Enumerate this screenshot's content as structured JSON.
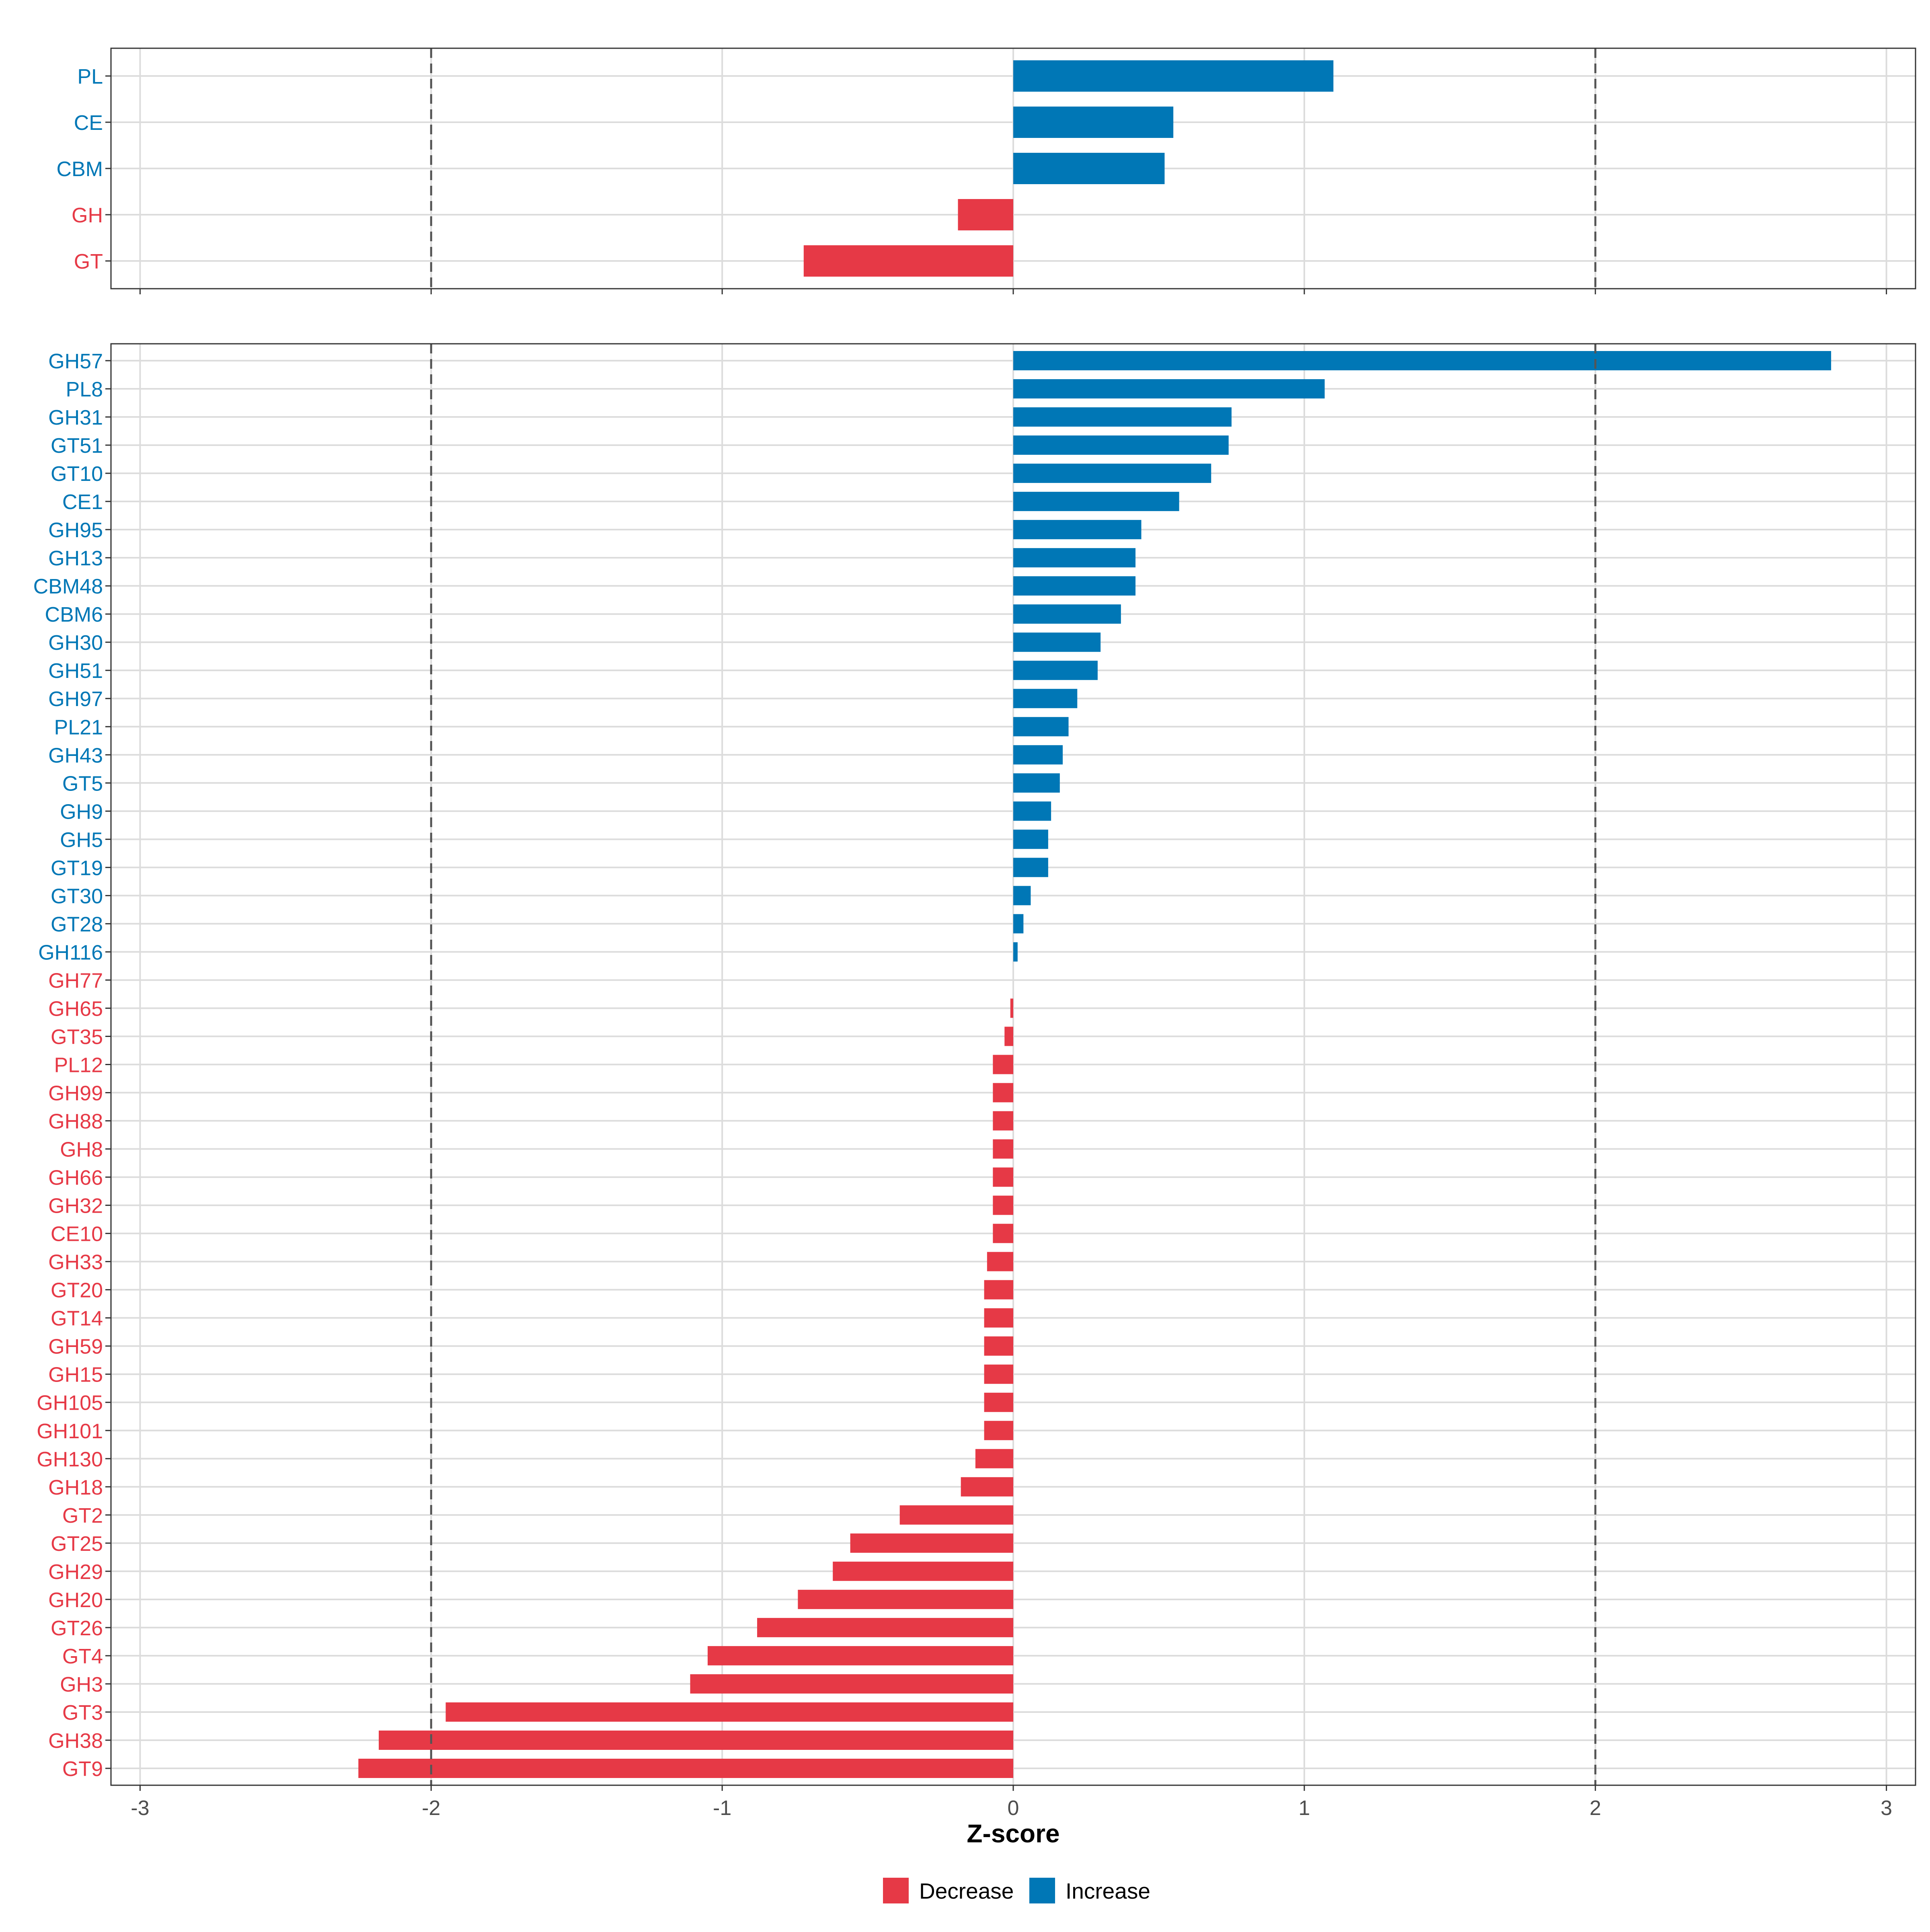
{
  "chart_data": {
    "type": "bar",
    "orientation": "horizontal",
    "xlabel": "Z-score",
    "xlim": [
      -3.1,
      3.1
    ],
    "xticks": [
      -3,
      -2,
      -1,
      0,
      1,
      2,
      3
    ],
    "reference_lines": [
      -2,
      2
    ],
    "grid": true,
    "colors": {
      "Decrease": "#e63946",
      "Increase": "#0077b6"
    },
    "legend": {
      "position": "bottom",
      "entries": [
        {
          "label": "Decrease",
          "color": "#e63946"
        },
        {
          "label": "Increase",
          "color": "#0077b6"
        }
      ]
    },
    "panels": [
      {
        "name": "class",
        "categories": [
          "PL",
          "CE",
          "CBM",
          "GH",
          "GT"
        ],
        "values": [
          1.1,
          0.55,
          0.52,
          -0.19,
          -0.72
        ],
        "groups": [
          "Increase",
          "Increase",
          "Increase",
          "Decrease",
          "Decrease"
        ]
      },
      {
        "name": "family",
        "categories": [
          "GH57",
          "PL8",
          "GH31",
          "GT51",
          "GT10",
          "CE1",
          "GH95",
          "GH13",
          "CBM48",
          "CBM6",
          "GH30",
          "GH51",
          "GH97",
          "PL21",
          "GH43",
          "GT5",
          "GH9",
          "GH5",
          "GT19",
          "GT30",
          "GT28",
          "GH116",
          "GH77",
          "GH65",
          "GT35",
          "PL12",
          "GH99",
          "GH88",
          "GH8",
          "GH66",
          "GH32",
          "CE10",
          "GH33",
          "GT20",
          "GT14",
          "GH59",
          "GH15",
          "GH105",
          "GH101",
          "GH130",
          "GH18",
          "GT2",
          "GT25",
          "GH29",
          "GH20",
          "GT26",
          "GT4",
          "GH3",
          "GT3",
          "GH38",
          "GT9"
        ],
        "values": [
          2.81,
          1.07,
          0.75,
          0.74,
          0.68,
          0.57,
          0.44,
          0.42,
          0.42,
          0.37,
          0.3,
          0.29,
          0.22,
          0.19,
          0.17,
          0.16,
          0.13,
          0.12,
          0.12,
          0.06,
          0.035,
          0.015,
          0.0,
          -0.01,
          -0.03,
          -0.07,
          -0.07,
          -0.07,
          -0.07,
          -0.07,
          -0.07,
          -0.07,
          -0.09,
          -0.1,
          -0.1,
          -0.1,
          -0.1,
          -0.1,
          -0.1,
          -0.13,
          -0.18,
          -0.39,
          -0.56,
          -0.62,
          -0.74,
          -0.88,
          -1.05,
          -1.11,
          -1.95,
          -2.18,
          -2.25
        ],
        "groups": [
          "Increase",
          "Increase",
          "Increase",
          "Increase",
          "Increase",
          "Increase",
          "Increase",
          "Increase",
          "Increase",
          "Increase",
          "Increase",
          "Increase",
          "Increase",
          "Increase",
          "Increase",
          "Increase",
          "Increase",
          "Increase",
          "Increase",
          "Increase",
          "Increase",
          "Increase",
          "Decrease",
          "Decrease",
          "Decrease",
          "Decrease",
          "Decrease",
          "Decrease",
          "Decrease",
          "Decrease",
          "Decrease",
          "Decrease",
          "Decrease",
          "Decrease",
          "Decrease",
          "Decrease",
          "Decrease",
          "Decrease",
          "Decrease",
          "Decrease",
          "Decrease",
          "Decrease",
          "Decrease",
          "Decrease",
          "Decrease",
          "Decrease",
          "Decrease",
          "Decrease",
          "Decrease",
          "Decrease",
          "Decrease"
        ]
      }
    ]
  }
}
